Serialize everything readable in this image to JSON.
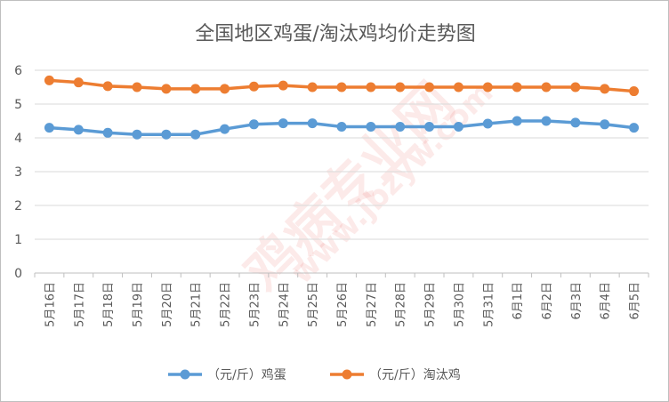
{
  "chart_data": {
    "type": "line",
    "title": "全国地区鸡蛋/淘汰鸡均价走势图",
    "categories": [
      "5月16日",
      "5月17日",
      "5月18日",
      "5月19日",
      "5月20日",
      "5月21日",
      "5月22日",
      "5月23日",
      "5月24日",
      "5月25日",
      "5月26日",
      "5月27日",
      "5月28日",
      "5月29日",
      "5月30日",
      "5月31日",
      "6月1日",
      "6月2日",
      "6月3日",
      "6月4日",
      "6月5日"
    ],
    "series": [
      {
        "name": "（元/斤）鸡蛋",
        "color": "#5b9bd5",
        "values": [
          4.3,
          4.24,
          4.15,
          4.1,
          4.1,
          4.1,
          4.26,
          4.4,
          4.43,
          4.43,
          4.33,
          4.33,
          4.33,
          4.33,
          4.33,
          4.42,
          4.5,
          4.5,
          4.45,
          4.4,
          4.3
        ]
      },
      {
        "name": "（元/斤）淘汰鸡",
        "color": "#ed7d31",
        "values": [
          5.7,
          5.64,
          5.53,
          5.5,
          5.45,
          5.45,
          5.45,
          5.52,
          5.55,
          5.5,
          5.5,
          5.5,
          5.5,
          5.5,
          5.5,
          5.5,
          5.5,
          5.5,
          5.5,
          5.45,
          5.38
        ]
      }
    ],
    "ylim": [
      0,
      6
    ],
    "yticks": [
      "0",
      "1",
      "2",
      "3",
      "4",
      "5",
      "6"
    ],
    "grid": true,
    "legend_position": "bottom"
  },
  "watermark": {
    "text": "鸡病专业网",
    "url": "www.jbzyw.com"
  }
}
